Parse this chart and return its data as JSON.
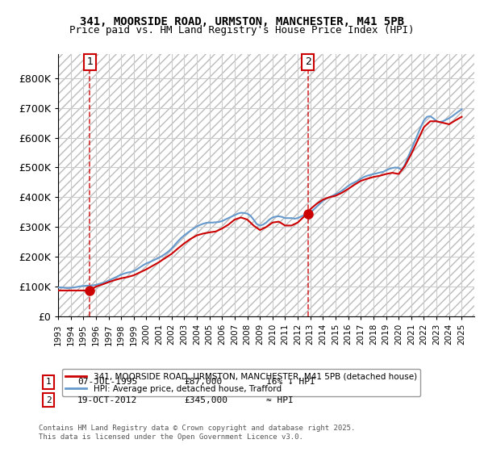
{
  "title_line1": "341, MOORSIDE ROAD, URMSTON, MANCHESTER, M41 5PB",
  "title_line2": "Price paid vs. HM Land Registry's House Price Index (HPI)",
  "xlim_start": 1993.0,
  "xlim_end": 2026.0,
  "ylim_min": 0,
  "ylim_max": 880000,
  "yticks": [
    0,
    100000,
    200000,
    300000,
    400000,
    500000,
    600000,
    700000,
    800000
  ],
  "ytick_labels": [
    "£0",
    "£100K",
    "£200K",
    "£300K",
    "£400K",
    "£500K",
    "£600K",
    "£700K",
    "£800K"
  ],
  "purchase1_date": 1995.52,
  "purchase1_price": 87000,
  "purchase2_date": 2012.8,
  "purchase2_price": 345000,
  "line_color_house": "#cc0000",
  "line_color_hpi": "#6699cc",
  "hatch_color": "#cccccc",
  "grid_color": "#cccccc",
  "annotation_box_color": "#cc0000",
  "legend_line1": "341, MOORSIDE ROAD, URMSTON, MANCHESTER, M41 5PB (detached house)",
  "legend_line2": "HPI: Average price, detached house, Trafford",
  "annotation1_label": "1",
  "annotation1_text": "07-JUL-1995          £87,000          16% ↓ HPI",
  "annotation2_label": "2",
  "annotation2_text": "19-OCT-2012          £345,000          ≈ HPI",
  "footer_text": "Contains HM Land Registry data © Crown copyright and database right 2025.\nThis data is licensed under the Open Government Licence v3.0.",
  "hpi_data_x": [
    1993.0,
    1993.25,
    1993.5,
    1993.75,
    1994.0,
    1994.25,
    1994.5,
    1994.75,
    1995.0,
    1995.25,
    1995.5,
    1995.75,
    1996.0,
    1996.25,
    1996.5,
    1996.75,
    1997.0,
    1997.25,
    1997.5,
    1997.75,
    1998.0,
    1998.25,
    1998.5,
    1998.75,
    1999.0,
    1999.25,
    1999.5,
    1999.75,
    2000.0,
    2000.25,
    2000.5,
    2000.75,
    2001.0,
    2001.25,
    2001.5,
    2001.75,
    2002.0,
    2002.25,
    2002.5,
    2002.75,
    2003.0,
    2003.25,
    2003.5,
    2003.75,
    2004.0,
    2004.25,
    2004.5,
    2004.75,
    2005.0,
    2005.25,
    2005.5,
    2005.75,
    2006.0,
    2006.25,
    2006.5,
    2006.75,
    2007.0,
    2007.25,
    2007.5,
    2007.75,
    2008.0,
    2008.25,
    2008.5,
    2008.75,
    2009.0,
    2009.25,
    2009.5,
    2009.75,
    2010.0,
    2010.25,
    2010.5,
    2010.75,
    2011.0,
    2011.25,
    2011.5,
    2011.75,
    2012.0,
    2012.25,
    2012.5,
    2012.75,
    2013.0,
    2013.25,
    2013.5,
    2013.75,
    2014.0,
    2014.25,
    2014.5,
    2014.75,
    2015.0,
    2015.25,
    2015.5,
    2015.75,
    2016.0,
    2016.25,
    2016.5,
    2016.75,
    2017.0,
    2017.25,
    2017.5,
    2017.75,
    2018.0,
    2018.25,
    2018.5,
    2018.75,
    2019.0,
    2019.25,
    2019.5,
    2019.75,
    2020.0,
    2020.25,
    2020.5,
    2020.75,
    2021.0,
    2021.25,
    2021.5,
    2021.75,
    2022.0,
    2022.25,
    2022.5,
    2022.75,
    2023.0,
    2023.25,
    2023.5,
    2023.75,
    2024.0,
    2024.25,
    2024.5,
    2024.75,
    2025.0
  ],
  "hpi_data_y": [
    97000,
    97500,
    96000,
    95000,
    96000,
    97000,
    99000,
    101000,
    102000,
    103000,
    103500,
    104000,
    106000,
    109000,
    112000,
    115000,
    120000,
    125000,
    130000,
    135000,
    140000,
    144000,
    147000,
    149000,
    152000,
    158000,
    165000,
    172000,
    178000,
    182000,
    187000,
    192000,
    197000,
    203000,
    210000,
    218000,
    228000,
    240000,
    252000,
    263000,
    272000,
    280000,
    288000,
    295000,
    302000,
    307000,
    311000,
    314000,
    315000,
    315000,
    316000,
    317000,
    320000,
    325000,
    330000,
    335000,
    340000,
    345000,
    348000,
    347000,
    345000,
    338000,
    325000,
    310000,
    305000,
    308000,
    315000,
    325000,
    332000,
    335000,
    336000,
    334000,
    330000,
    330000,
    330000,
    328000,
    330000,
    335000,
    340000,
    345000,
    350000,
    358000,
    368000,
    378000,
    388000,
    395000,
    400000,
    405000,
    410000,
    415000,
    422000,
    430000,
    438000,
    445000,
    450000,
    455000,
    462000,
    468000,
    472000,
    475000,
    478000,
    480000,
    483000,
    485000,
    490000,
    495000,
    498000,
    500000,
    498000,
    492000,
    510000,
    535000,
    560000,
    585000,
    610000,
    635000,
    658000,
    670000,
    672000,
    665000,
    655000,
    652000,
    655000,
    660000,
    665000,
    672000,
    680000,
    688000,
    695000
  ],
  "house_data_x": [
    1993.0,
    1993.5,
    1994.0,
    1994.5,
    1995.0,
    1995.52,
    1996.0,
    1996.5,
    1997.0,
    1997.5,
    1998.0,
    1998.5,
    1999.0,
    1999.5,
    2000.0,
    2000.5,
    2001.0,
    2001.5,
    2002.0,
    2002.5,
    2003.0,
    2003.5,
    2004.0,
    2004.5,
    2005.0,
    2005.5,
    2006.0,
    2006.5,
    2007.0,
    2007.5,
    2008.0,
    2008.5,
    2009.0,
    2009.5,
    2010.0,
    2010.5,
    2011.0,
    2011.5,
    2012.0,
    2012.5,
    2012.8,
    2013.0,
    2013.5,
    2014.0,
    2014.5,
    2015.0,
    2015.5,
    2016.0,
    2016.5,
    2017.0,
    2017.5,
    2018.0,
    2018.5,
    2019.0,
    2019.5,
    2020.0,
    2020.5,
    2021.0,
    2021.5,
    2022.0,
    2022.5,
    2023.0,
    2023.5,
    2024.0,
    2024.5,
    2025.0
  ],
  "house_data_y": [
    87000,
    87000,
    87000,
    87000,
    87000,
    87000,
    100000,
    107000,
    115000,
    122000,
    128000,
    132000,
    138000,
    148000,
    158000,
    170000,
    182000,
    196000,
    210000,
    228000,
    245000,
    260000,
    272000,
    278000,
    282000,
    285000,
    295000,
    308000,
    325000,
    332000,
    325000,
    305000,
    290000,
    300000,
    315000,
    318000,
    305000,
    305000,
    315000,
    335000,
    345000,
    360000,
    378000,
    392000,
    400000,
    405000,
    415000,
    428000,
    442000,
    455000,
    462000,
    468000,
    472000,
    478000,
    482000,
    478000,
    505000,
    545000,
    590000,
    635000,
    655000,
    655000,
    650000,
    645000,
    658000,
    670000
  ]
}
